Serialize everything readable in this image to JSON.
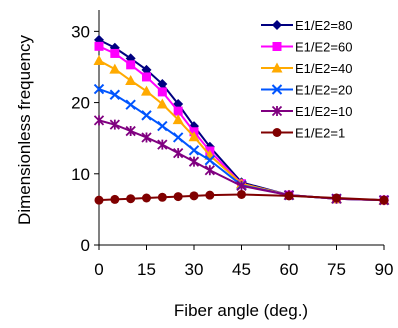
{
  "chart_data": {
    "type": "line",
    "title": "",
    "xlabel": "Fiber angle (deg.)",
    "ylabel": "Dimensionless frequency",
    "xlim": [
      0,
      90
    ],
    "ylim": [
      0,
      33
    ],
    "xticks": [
      0,
      15,
      30,
      45,
      60,
      75,
      90
    ],
    "yticks": [
      0,
      10,
      20,
      30
    ],
    "grid": false,
    "legend_position": "top-right",
    "series": [
      {
        "name": "E1/E2=80",
        "color": "#000080",
        "marker": "diamond",
        "x": [
          0,
          5,
          10,
          15,
          20,
          25,
          30,
          35,
          45,
          60,
          75,
          90
        ],
        "y": [
          28.8,
          27.7,
          26.2,
          24.6,
          22.6,
          19.8,
          16.7,
          13.8,
          8.8,
          7.0,
          6.5,
          6.3
        ]
      },
      {
        "name": "E1/E2=60",
        "color": "#FF00FF",
        "marker": "square",
        "x": [
          0,
          5,
          10,
          15,
          20,
          25,
          30,
          35,
          45,
          60,
          75,
          90
        ],
        "y": [
          27.9,
          26.9,
          25.3,
          23.6,
          21.5,
          18.8,
          15.9,
          13.2,
          8.6,
          7.0,
          6.5,
          6.3
        ]
      },
      {
        "name": "E1/E2=40",
        "color": "#FFAA00",
        "marker": "triangle",
        "x": [
          0,
          5,
          10,
          15,
          20,
          25,
          30,
          35,
          45,
          60,
          75,
          90
        ],
        "y": [
          25.9,
          24.7,
          23.1,
          21.6,
          19.8,
          17.6,
          15.2,
          12.6,
          8.6,
          7.0,
          6.5,
          6.3
        ]
      },
      {
        "name": "E1/E2=20",
        "color": "#0055FF",
        "marker": "x",
        "x": [
          0,
          5,
          10,
          15,
          20,
          25,
          30,
          35,
          45,
          60,
          75,
          90
        ],
        "y": [
          21.9,
          21.1,
          19.7,
          18.2,
          16.7,
          15.1,
          13.3,
          11.9,
          8.4,
          7.0,
          6.5,
          6.3
        ]
      },
      {
        "name": "E1/E2=10",
        "color": "#800080",
        "marker": "star",
        "x": [
          0,
          5,
          10,
          15,
          20,
          25,
          30,
          35,
          45,
          60,
          75,
          90
        ],
        "y": [
          17.5,
          16.9,
          16.0,
          15.1,
          14.1,
          12.9,
          11.7,
          10.5,
          8.3,
          7.0,
          6.5,
          6.3
        ]
      },
      {
        "name": "E1/E2=1",
        "color": "#800000",
        "marker": "circle",
        "x": [
          0,
          5,
          10,
          15,
          20,
          25,
          30,
          35,
          45,
          60,
          75,
          90
        ],
        "y": [
          6.3,
          6.4,
          6.5,
          6.6,
          6.7,
          6.8,
          6.9,
          7.0,
          7.1,
          6.9,
          6.6,
          6.3
        ]
      }
    ]
  }
}
